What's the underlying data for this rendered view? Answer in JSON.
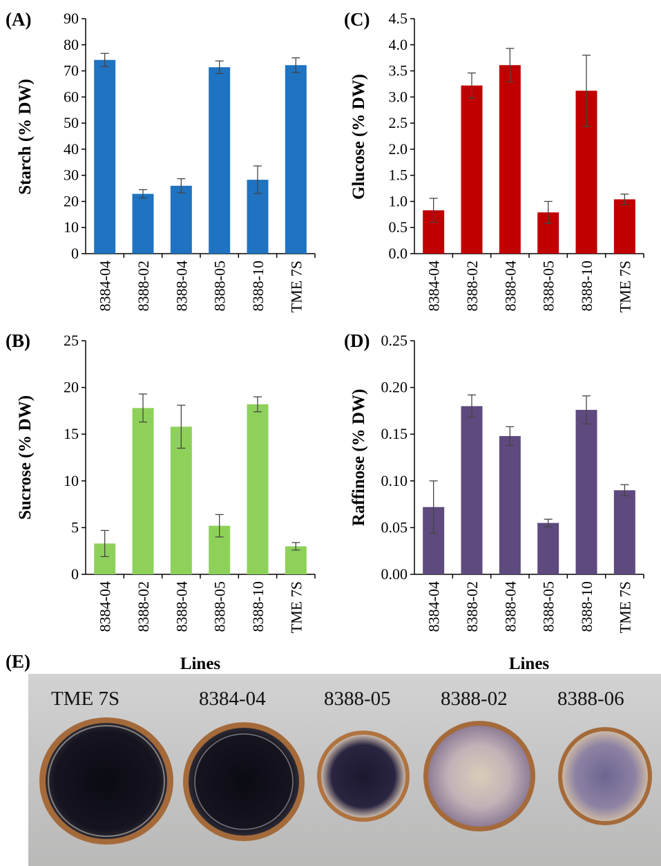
{
  "chart_data": [
    {
      "panel": "(A)",
      "type": "bar",
      "ylabel": "Starch (% DW)",
      "xlabel": "",
      "categories": [
        "8384-04",
        "8388-02",
        "8388-04",
        "8388-05",
        "8388-10",
        "TME 7S"
      ],
      "values": [
        74.2,
        22.9,
        26.0,
        71.4,
        28.3,
        72.2
      ],
      "errors": [
        2.5,
        1.6,
        2.7,
        2.4,
        5.3,
        2.8
      ],
      "ylim": [
        0,
        90
      ],
      "yticks": [
        "0",
        "10",
        "20",
        "30",
        "40",
        "50",
        "60",
        "70",
        "80",
        "90"
      ],
      "color": "#1f73c0"
    },
    {
      "panel": "(B)",
      "type": "bar",
      "ylabel": "Sucrose (% DW)",
      "xlabel": "Lines",
      "categories": [
        "8384-04",
        "8388-02",
        "8388-04",
        "8388-05",
        "8388-10",
        "TME 7S"
      ],
      "values": [
        3.3,
        17.8,
        15.8,
        5.2,
        18.2,
        3.0
      ],
      "errors": [
        1.4,
        1.5,
        2.3,
        1.2,
        0.8,
        0.4
      ],
      "ylim": [
        0,
        25
      ],
      "yticks": [
        "0",
        "5",
        "10",
        "15",
        "20",
        "25"
      ],
      "color": "#8ed15a"
    },
    {
      "panel": "(C)",
      "type": "bar",
      "ylabel": "Glucose (% DW)",
      "xlabel": "",
      "categories": [
        "8384-04",
        "8388-02",
        "8388-04",
        "8388-05",
        "8388-10",
        "TME 7S"
      ],
      "values": [
        0.83,
        3.22,
        3.61,
        0.79,
        3.12,
        1.04
      ],
      "errors": [
        0.23,
        0.24,
        0.32,
        0.21,
        0.68,
        0.1
      ],
      "ylim": [
        0,
        4.5
      ],
      "yticks": [
        "0.0",
        "0.5",
        "1.0",
        "1.5",
        "2.0",
        "2.5",
        "3.0",
        "3.5",
        "4.0",
        "4.5"
      ],
      "color": "#c00000"
    },
    {
      "panel": "(D)",
      "type": "bar",
      "ylabel": "Raffinose (% DW)",
      "xlabel": "Lines",
      "categories": [
        "8384-04",
        "8388-02",
        "8388-04",
        "8388-05",
        "8388-10",
        "TME 7S"
      ],
      "values": [
        0.072,
        0.18,
        0.148,
        0.055,
        0.176,
        0.09
      ],
      "errors": [
        0.028,
        0.012,
        0.01,
        0.004,
        0.015,
        0.006
      ],
      "ylim": [
        0,
        0.25
      ],
      "yticks": [
        "0.00",
        "0.05",
        "0.10",
        "0.15",
        "0.20",
        "0.25"
      ],
      "color": "#5e4a7e"
    }
  ],
  "photo": {
    "panel": "(E)",
    "labels": [
      "TME 7S",
      "8384-04",
      "8388-05",
      "8388-02",
      "8388-06"
    ]
  }
}
